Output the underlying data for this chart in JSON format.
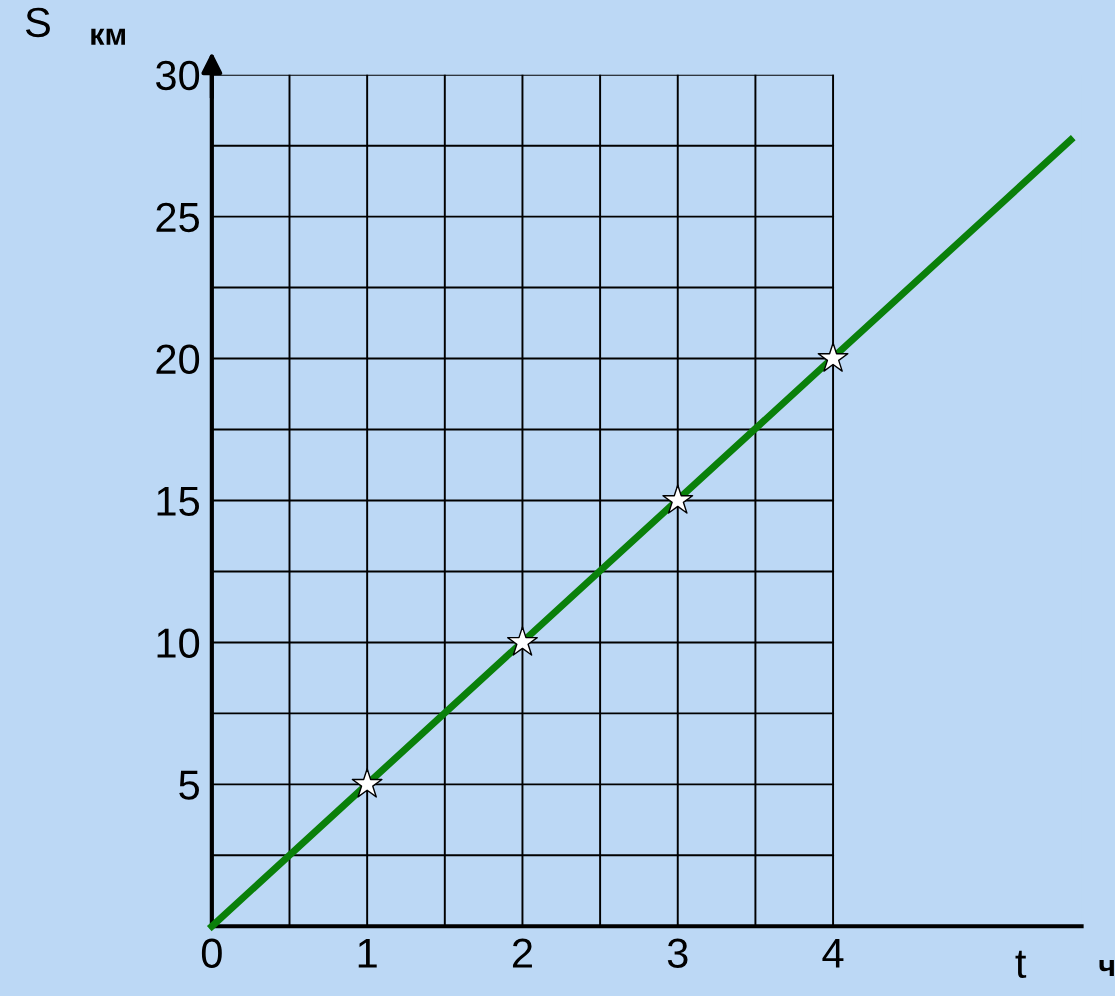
{
  "chart_data": {
    "type": "line",
    "xlabel": "t",
    "ylabel": "S",
    "annotations": [
      "км",
      "ч"
    ],
    "series": [
      {
        "color": "#0a800a",
        "x": [
          0,
          5.53
        ],
        "values": [
          0,
          27.7
        ],
        "marker": "none"
      },
      {
        "type": "scatter",
        "color": "#ffffff",
        "x": [
          1,
          2,
          3,
          4
        ],
        "values": [
          5,
          10,
          15,
          20
        ],
        "marker": "star"
      }
    ],
    "xlim": [
      0,
      5.6
    ],
    "ylim": [
      0,
      30
    ],
    "xticks": [
      0,
      {
        "value": 0.5,
        "label": null
      },
      1,
      {
        "value": 1.5,
        "label": null
      },
      2,
      {
        "value": 2.5,
        "label": null
      },
      3,
      {
        "value": 3.5,
        "label": null
      },
      4
    ],
    "yticks": [
      {
        "value": 0,
        "label": null
      },
      {
        "value": 2.5,
        "label": null
      },
      5,
      {
        "value": 7.5,
        "label": null
      },
      10,
      {
        "value": 12.5,
        "label": null
      },
      15,
      {
        "value": 17.5,
        "label": null
      },
      20,
      {
        "value": 22.5,
        "label": null
      },
      25,
      {
        "value": 27.5,
        "label": null
      },
      30
    ],
    "grid": true
  }
}
